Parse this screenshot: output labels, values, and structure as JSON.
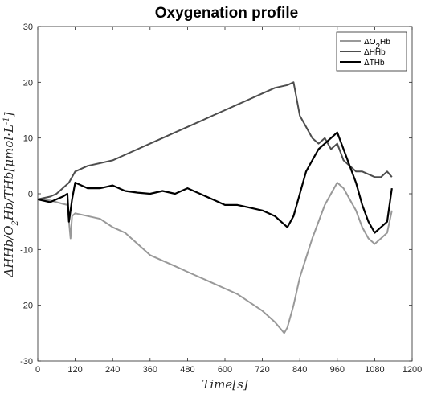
{
  "chart_data": {
    "type": "line",
    "title": "Oxygenation profile",
    "xlabel": "Time[s]",
    "ylabel": "ΔHHb/O2Hb/THb[μmol·L^-1]",
    "xlim": [
      0,
      1200
    ],
    "ylim": [
      -30,
      30
    ],
    "xticks": [
      0,
      120,
      240,
      360,
      480,
      600,
      720,
      840,
      960,
      1080,
      1200
    ],
    "yticks": [
      -30,
      -20,
      -10,
      0,
      10,
      20,
      30
    ],
    "grid": false,
    "legend_position": "top-right",
    "series": [
      {
        "name": "ΔO2Hb",
        "color": "#999999",
        "x": [
          0,
          40,
          60,
          80,
          95,
          105,
          110,
          120,
          160,
          200,
          240,
          280,
          320,
          360,
          400,
          440,
          480,
          520,
          560,
          600,
          640,
          680,
          720,
          760,
          790,
          800,
          820,
          840,
          880,
          920,
          940,
          960,
          980,
          1000,
          1020,
          1040,
          1060,
          1080,
          1100,
          1120,
          1135
        ],
        "y": [
          -1,
          -1.2,
          -1.5,
          -1.8,
          -2,
          -8,
          -4,
          -3.5,
          -4,
          -4.5,
          -6,
          -7,
          -9,
          -11,
          -12,
          -13,
          -14,
          -15,
          -16,
          -17,
          -18,
          -19.5,
          -21,
          -23,
          -25,
          -24,
          -20,
          -15,
          -8,
          -2,
          0,
          2,
          1,
          -1,
          -3,
          -6,
          -8,
          -9,
          -8,
          -7,
          -3
        ]
      },
      {
        "name": "ΔHHb",
        "color": "#4d4d4d",
        "x": [
          0,
          40,
          60,
          80,
          100,
          120,
          160,
          200,
          240,
          280,
          320,
          360,
          400,
          440,
          480,
          520,
          560,
          600,
          640,
          680,
          720,
          760,
          800,
          820,
          830,
          840,
          860,
          880,
          900,
          920,
          940,
          960,
          980,
          1000,
          1020,
          1040,
          1060,
          1080,
          1100,
          1120,
          1135
        ],
        "y": [
          -1,
          -0.5,
          0,
          1,
          2,
          4,
          5,
          5.5,
          6,
          7,
          8,
          9,
          10,
          11,
          12,
          13,
          14,
          15,
          16,
          17,
          18,
          19,
          19.5,
          20,
          17,
          14,
          12,
          10,
          9,
          10,
          8,
          9,
          6,
          5,
          4,
          4,
          3.5,
          3,
          3,
          4,
          3
        ]
      },
      {
        "name": "ΔTHb",
        "color": "#000000",
        "x": [
          0,
          40,
          60,
          80,
          95,
          100,
          105,
          110,
          120,
          160,
          200,
          240,
          280,
          320,
          360,
          400,
          440,
          480,
          520,
          560,
          600,
          640,
          680,
          720,
          760,
          780,
          800,
          820,
          840,
          860,
          880,
          900,
          920,
          940,
          960,
          980,
          1000,
          1020,
          1040,
          1060,
          1080,
          1100,
          1120,
          1135
        ],
        "y": [
          -1,
          -1.5,
          -1,
          -0.5,
          0,
          -5,
          -3,
          -1,
          2,
          1,
          1,
          1.5,
          0.5,
          0.2,
          0,
          0.5,
          0,
          1,
          0,
          -1,
          -2,
          -2,
          -2.5,
          -3,
          -4,
          -5,
          -6,
          -4,
          0,
          4,
          6,
          8,
          9,
          10,
          11,
          8,
          5,
          2,
          -2,
          -5,
          -7,
          -6,
          -5,
          1
        ]
      }
    ]
  }
}
